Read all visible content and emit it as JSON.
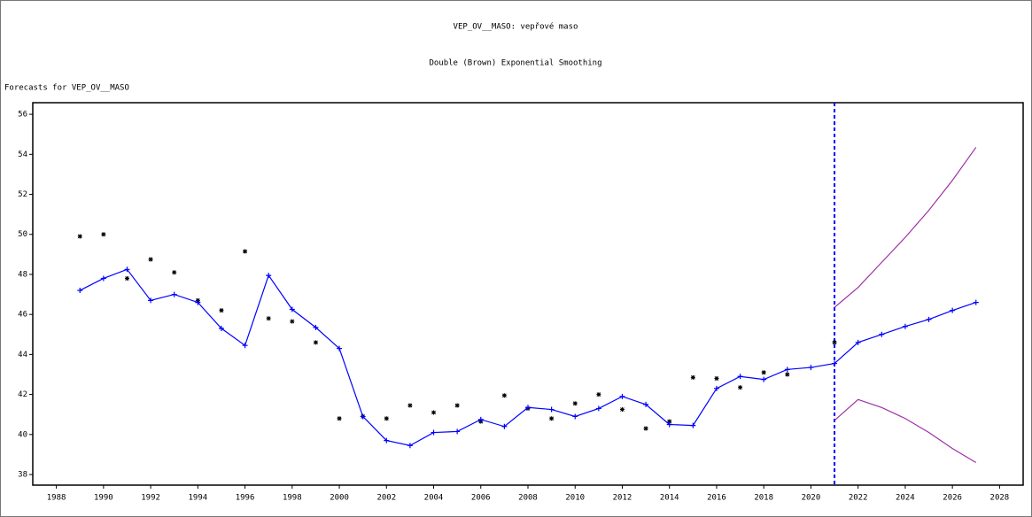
{
  "chart_data": {
    "type": "line",
    "title": "VEP_OV__MASO: vepřové maso",
    "subtitle": "Double (Brown) Exponential Smoothing",
    "y_axis_title": "Forecasts for VEP_OV__MASO",
    "x": [
      1989,
      1990,
      1991,
      1992,
      1993,
      1994,
      1995,
      1996,
      1997,
      1998,
      1999,
      2000,
      2001,
      2002,
      2003,
      2004,
      2005,
      2006,
      2007,
      2008,
      2009,
      2010,
      2011,
      2012,
      2013,
      2014,
      2015,
      2016,
      2017,
      2018,
      2019,
      2020,
      2021,
      2022,
      2023,
      2024,
      2025,
      2026,
      2027
    ],
    "series": [
      {
        "color": "#000000",
        "marker": "star",
        "values": [
          49.9,
          50.0,
          47.8,
          48.75,
          48.1,
          46.7,
          46.2,
          49.15,
          45.8,
          45.65,
          44.6,
          40.8,
          40.9,
          40.8,
          41.45,
          41.1,
          41.45,
          40.65,
          41.95,
          41.3,
          40.8,
          41.55,
          42.0,
          41.25,
          40.3,
          40.65,
          42.85,
          42.8,
          42.35,
          43.1,
          43.0,
          null,
          44.6,
          null,
          null,
          null,
          null,
          null,
          null
        ]
      },
      {
        "color": "#0000ff",
        "marker": "plus",
        "values": [
          47.2,
          47.8,
          48.25,
          46.7,
          47.0,
          46.6,
          45.3,
          44.45,
          47.95,
          46.25,
          45.35,
          44.3,
          40.9,
          39.7,
          39.45,
          40.1,
          40.15,
          40.75,
          40.4,
          41.35,
          41.25,
          40.9,
          41.3,
          41.9,
          41.5,
          40.5,
          40.45,
          42.3,
          42.9,
          42.75,
          43.25,
          43.35,
          43.55,
          44.6,
          45.0,
          45.4,
          45.75,
          46.2,
          46.6
        ]
      },
      {
        "color": "#a030a8",
        "marker": "none",
        "values": [
          null,
          null,
          null,
          null,
          null,
          null,
          null,
          null,
          null,
          null,
          null,
          null,
          null,
          null,
          null,
          null,
          null,
          null,
          null,
          null,
          null,
          null,
          null,
          null,
          null,
          null,
          null,
          null,
          null,
          null,
          null,
          null,
          46.35,
          47.35,
          48.6,
          49.85,
          51.2,
          52.7,
          54.35
        ]
      },
      {
        "color": "#a030a8",
        "marker": "none",
        "values": [
          null,
          null,
          null,
          null,
          null,
          null,
          null,
          null,
          null,
          null,
          null,
          null,
          null,
          null,
          null,
          null,
          null,
          null,
          null,
          null,
          null,
          null,
          null,
          null,
          null,
          null,
          null,
          null,
          null,
          null,
          null,
          null,
          40.7,
          41.75,
          41.35,
          40.8,
          40.1,
          39.3,
          38.6
        ]
      }
    ],
    "reference_line": {
      "x": 2021,
      "color": "#0000ff"
    },
    "xlim": [
      1987,
      2029
    ],
    "xticks": [
      1988,
      1990,
      1992,
      1994,
      1996,
      1998,
      2000,
      2002,
      2004,
      2006,
      2008,
      2010,
      2012,
      2014,
      2016,
      2018,
      2020,
      2022,
      2024,
      2026,
      2028
    ],
    "ylim": [
      37.47,
      56.58
    ],
    "yticks": [
      38,
      40,
      42,
      44,
      46,
      48,
      50,
      52,
      54,
      56
    ]
  }
}
